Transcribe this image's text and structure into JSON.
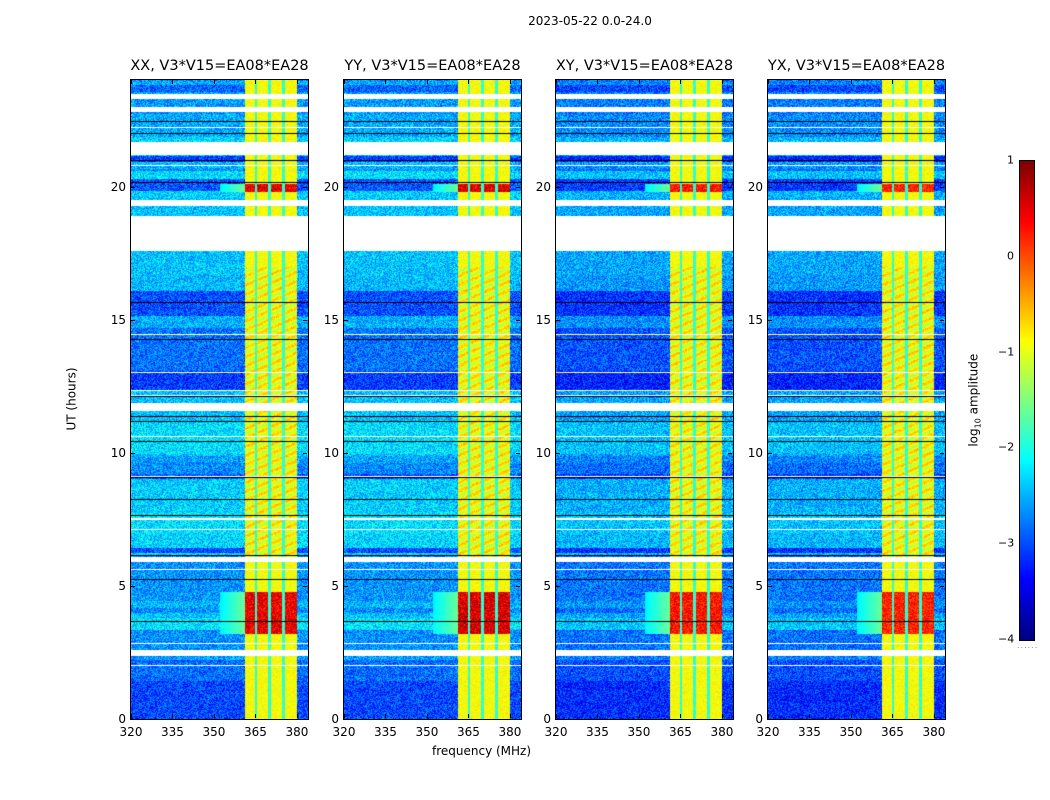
{
  "figure": {
    "suptitle": "2023-05-22 0.0-24.0",
    "xlabel": "frequency (MHz)",
    "ylabel": "UT (hours)"
  },
  "colorbar": {
    "label_prefix": "log",
    "label_sub": "10",
    "label_suffix": " amplitude",
    "range": [
      -4,
      1
    ],
    "ticks": [
      "1",
      "0",
      "−1",
      "−2",
      "−3",
      "−4"
    ],
    "tick_values": [
      1,
      0,
      -1,
      -2,
      -3,
      -4
    ],
    "colormap": "jet"
  },
  "chart_data": {
    "type": "heatmap",
    "title": "2023-05-22 0.0-24.0",
    "xlabel": "frequency (MHz)",
    "ylabel": "UT (hours)",
    "xlim": [
      320,
      384
    ],
    "ylim": [
      0,
      24
    ],
    "xticks": [
      320,
      335,
      350,
      365,
      380
    ],
    "xtick_labels": [
      "320",
      "335",
      "350",
      "365",
      "380"
    ],
    "yticks": [
      0,
      5,
      10,
      15,
      20
    ],
    "ytick_labels": [
      "0",
      "5",
      "10",
      "15",
      "20"
    ],
    "value_label": "log10 amplitude",
    "value_range": [
      -4,
      1
    ],
    "panels": [
      {
        "title": "XX, V3*V15=EA08*EA28",
        "polarization": "XX",
        "peak_log10_amplitude": 0.8
      },
      {
        "title": "YY, V3*V15=EA08*EA28",
        "polarization": "YY",
        "peak_log10_amplitude": 0.9
      },
      {
        "title": "XY, V3*V15=EA08*EA28",
        "polarization": "XY",
        "peak_log10_amplitude": 0.6
      },
      {
        "title": "YX, V3*V15=EA08*EA28",
        "polarization": "YX",
        "peak_log10_amplitude": 0.5
      }
    ],
    "strong_band_mhz": [
      361,
      380
    ],
    "strong_subbands_mhz": [
      [
        361,
        364.5
      ],
      [
        365.5,
        369.5
      ],
      [
        370.5,
        374.5
      ],
      [
        375.5,
        380
      ]
    ],
    "background_log10_amplitude": -2.7,
    "band_log10_amplitude": -0.8,
    "flagged_ut_hours": [
      [
        2.4,
        2.6
      ],
      [
        5.9,
        6.1
      ],
      [
        11.6,
        11.9
      ],
      [
        17.6,
        18.9
      ],
      [
        19.3,
        19.5
      ],
      [
        21.2,
        21.7
      ],
      [
        22.8,
        23.0
      ],
      [
        23.3,
        23.5
      ]
    ],
    "rfi_events_ut_hours": [
      [
        3.2,
        4.8
      ],
      [
        19.8,
        20.1
      ]
    ],
    "dark_rows_ut_hours": [
      [
        9.0,
        11.5
      ]
    ]
  }
}
